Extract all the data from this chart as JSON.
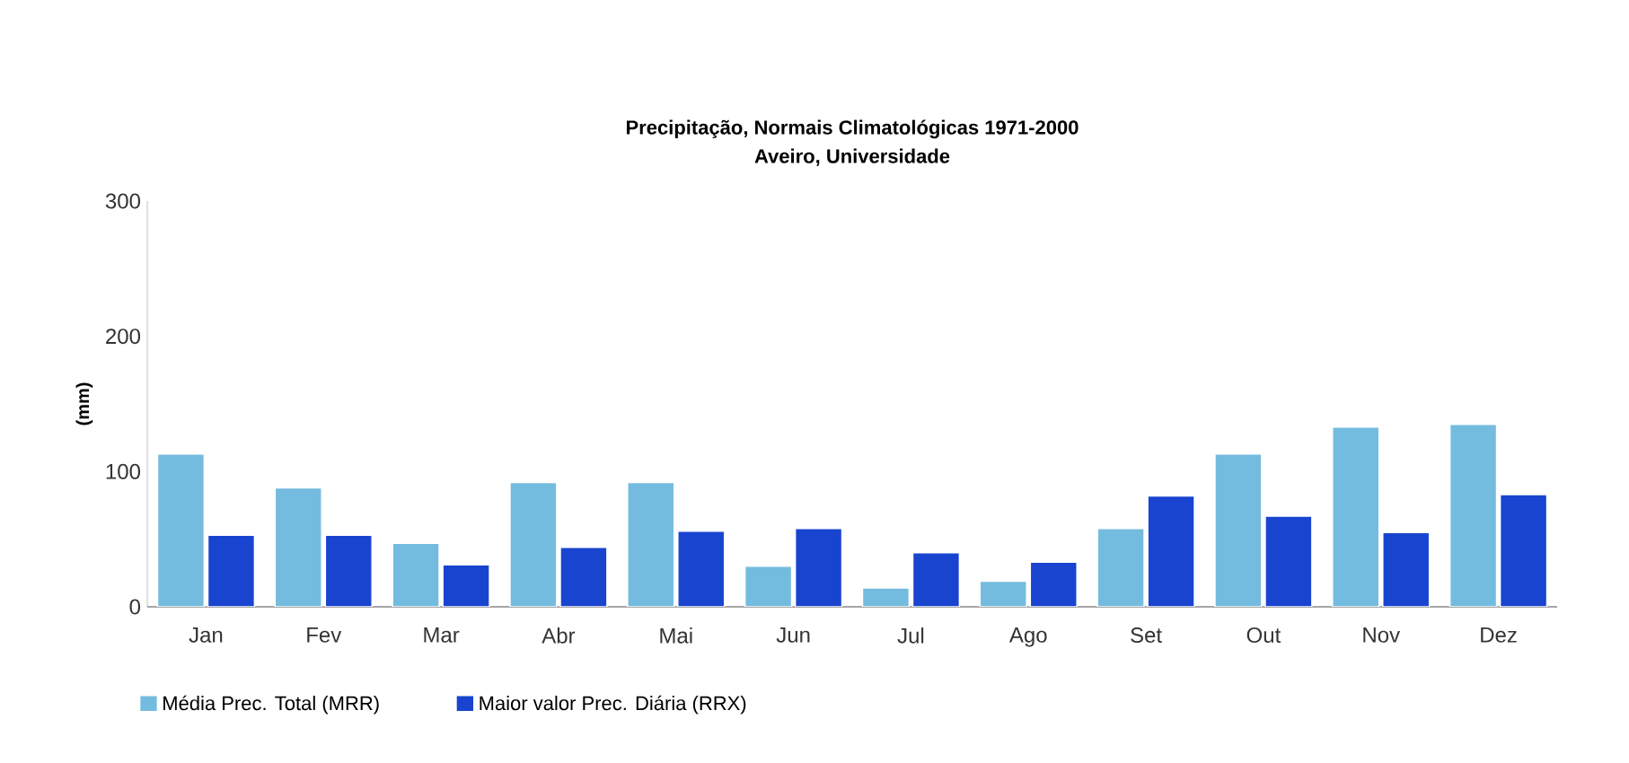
{
  "chart_data": {
    "type": "bar",
    "title": "Precipitação, Normais Climatológicas 1971-2000",
    "subtitle": "Aveiro, Universidade",
    "ylabel": "(mm)",
    "categories": [
      "Jan",
      "Fev",
      "Mar",
      "Abr",
      "Mai",
      "Jun",
      "Jul",
      "Ago",
      "Set",
      "Out",
      "Nov",
      "Dez"
    ],
    "series": [
      {
        "name": "Média Prec. Total (MRR)",
        "color": "#74bcdf",
        "values": [
          113,
          88,
          47,
          92,
          92,
          30,
          14,
          19,
          58,
          113,
          133,
          135
        ]
      },
      {
        "name": "Maior valor Prec. Diária (RRX)",
        "color": "#1844d0",
        "values": [
          53,
          53,
          31,
          44,
          56,
          58,
          40,
          33,
          82,
          67,
          55,
          83
        ]
      }
    ],
    "ylim": [
      0,
      300
    ],
    "yticks": [
      0,
      100,
      200,
      300
    ],
    "grid": false,
    "legend": "bottom"
  }
}
